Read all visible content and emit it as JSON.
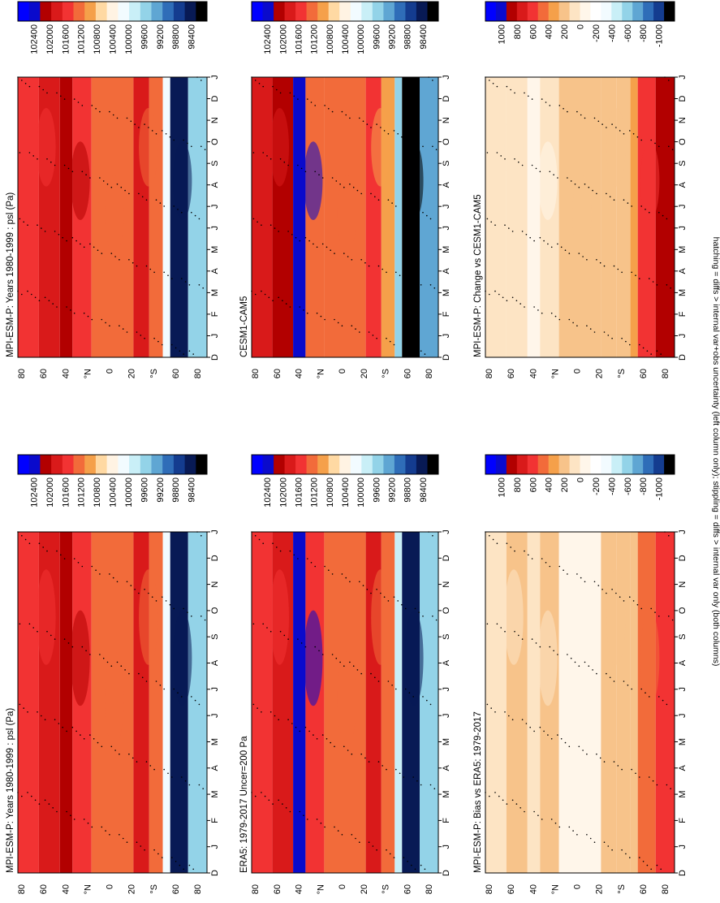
{
  "footnote": "hatching = diffs > internal var+obs uncertainty (left column only); stippling = diffs > internal var only (both columns)",
  "chart_data": [
    {
      "type": "heatmap",
      "panel": "left-top",
      "title": "MPI-ESM-P: Years 1980-1999 : psl (Pa)",
      "x_ticks": [
        "D",
        "J",
        "F",
        "M",
        "A",
        "M",
        "J",
        "J",
        "A",
        "S",
        "O",
        "N",
        "D",
        "J"
      ],
      "y_ticks": [
        "80",
        "60",
        "40",
        "°N",
        "0",
        "20",
        "°S",
        "60",
        "80"
      ],
      "colorbar_ticks": [
        "102400",
        "102000",
        "101600",
        "101200",
        "100800",
        "100400",
        "100000",
        "99600",
        "99200",
        "98800",
        "98400"
      ],
      "palette": "absolute",
      "zones": [
        {
          "lat_from": 90,
          "lat_to": 70,
          "value": 101400
        },
        {
          "lat_from": 70,
          "lat_to": 50,
          "value": 101700
        },
        {
          "lat_from": 50,
          "lat_to": 38,
          "value": 102000
        },
        {
          "lat_from": 38,
          "lat_to": 20,
          "value": 101400
        },
        {
          "lat_from": 20,
          "lat_to": -20,
          "value": 101150
        },
        {
          "lat_from": -20,
          "lat_to": -35,
          "value": 101700
        },
        {
          "lat_from": -35,
          "lat_to": -48,
          "value": 101200
        },
        {
          "lat_from": -48,
          "lat_to": -55,
          "value": 100100
        },
        {
          "lat_from": -55,
          "lat_to": -72,
          "value": 98700
        },
        {
          "lat_from": -72,
          "lat_to": -90,
          "value": 99700
        }
      ]
    },
    {
      "type": "heatmap",
      "panel": "right-top",
      "title": "MPI-ESM-P: Years 1980-1999 : psl (Pa)",
      "x_ticks": [
        "D",
        "J",
        "F",
        "M",
        "A",
        "M",
        "J",
        "J",
        "A",
        "S",
        "O",
        "N",
        "D",
        "J"
      ],
      "y_ticks": [
        "80",
        "60",
        "40",
        "°N",
        "0",
        "20",
        "°S",
        "60",
        "80"
      ],
      "colorbar_ticks": [
        "102400",
        "102000",
        "101600",
        "101200",
        "100800",
        "100400",
        "100000",
        "99600",
        "99200",
        "98800",
        "98400"
      ],
      "palette": "absolute",
      "zones": [
        {
          "lat_from": 90,
          "lat_to": 70,
          "value": 101400
        },
        {
          "lat_from": 70,
          "lat_to": 50,
          "value": 101700
        },
        {
          "lat_from": 50,
          "lat_to": 38,
          "value": 102000
        },
        {
          "lat_from": 38,
          "lat_to": 20,
          "value": 101400
        },
        {
          "lat_from": 20,
          "lat_to": -20,
          "value": 101150
        },
        {
          "lat_from": -20,
          "lat_to": -35,
          "value": 101700
        },
        {
          "lat_from": -35,
          "lat_to": -48,
          "value": 101200
        },
        {
          "lat_from": -48,
          "lat_to": -55,
          "value": 100100
        },
        {
          "lat_from": -55,
          "lat_to": -72,
          "value": 98700
        },
        {
          "lat_from": -72,
          "lat_to": -90,
          "value": 99700
        }
      ]
    },
    {
      "type": "heatmap",
      "panel": "left-middle",
      "title": "ERA5: 1979-2017 Uncer=200 Pa",
      "x_ticks": [
        "D",
        "J",
        "F",
        "M",
        "A",
        "M",
        "J",
        "J",
        "A",
        "S",
        "O",
        "N",
        "D",
        "J"
      ],
      "y_ticks": [
        "80",
        "60",
        "40",
        "°N",
        "0",
        "20",
        "°S",
        "60",
        "80"
      ],
      "colorbar_ticks": [
        "102400",
        "102000",
        "101600",
        "101200",
        "100800",
        "100400",
        "100000",
        "99600",
        "99200",
        "98800",
        "98400"
      ],
      "palette": "absolute",
      "zones": [
        {
          "lat_from": 90,
          "lat_to": 70,
          "value": 101500
        },
        {
          "lat_from": 70,
          "lat_to": 50,
          "value": 101800
        },
        {
          "lat_from": 50,
          "lat_to": 38,
          "value": 102100
        },
        {
          "lat_from": 38,
          "lat_to": 20,
          "value": 101400
        },
        {
          "lat_from": 20,
          "lat_to": -20,
          "value": 101150
        },
        {
          "lat_from": -20,
          "lat_to": -35,
          "value": 101600
        },
        {
          "lat_from": -35,
          "lat_to": -48,
          "value": 101100
        },
        {
          "lat_from": -48,
          "lat_to": -55,
          "value": 99800
        },
        {
          "lat_from": -55,
          "lat_to": -72,
          "value": 98500
        },
        {
          "lat_from": -72,
          "lat_to": -90,
          "value": 99500
        }
      ]
    },
    {
      "type": "heatmap",
      "panel": "right-middle",
      "title": "CESM1-CAM5",
      "x_ticks": [
        "D",
        "J",
        "F",
        "M",
        "A",
        "M",
        "J",
        "J",
        "A",
        "S",
        "O",
        "N",
        "D",
        "J"
      ],
      "y_ticks": [
        "80",
        "60",
        "40",
        "°N",
        "0",
        "20",
        "°S",
        "60",
        "80"
      ],
      "colorbar_ticks": [
        "102400",
        "102000",
        "101600",
        "101200",
        "100800",
        "100400",
        "100000",
        "99600",
        "99200",
        "98800",
        "98400"
      ],
      "palette": "absolute",
      "zones": [
        {
          "lat_from": 90,
          "lat_to": 70,
          "value": 101600
        },
        {
          "lat_from": 70,
          "lat_to": 50,
          "value": 101900
        },
        {
          "lat_from": 50,
          "lat_to": 38,
          "value": 102100
        },
        {
          "lat_from": 38,
          "lat_to": 20,
          "value": 101300
        },
        {
          "lat_from": 20,
          "lat_to": -20,
          "value": 101100
        },
        {
          "lat_from": -20,
          "lat_to": -35,
          "value": 101500
        },
        {
          "lat_from": -35,
          "lat_to": -48,
          "value": 101000
        },
        {
          "lat_from": -48,
          "lat_to": -55,
          "value": 99600
        },
        {
          "lat_from": -55,
          "lat_to": -72,
          "value": 98400
        },
        {
          "lat_from": -72,
          "lat_to": -90,
          "value": 99300
        }
      ]
    },
    {
      "type": "heatmap",
      "panel": "left-bottom",
      "title": "MPI-ESM-P: Bias vs ERA5: 1979-2017",
      "x_ticks": [
        "D",
        "J",
        "F",
        "M",
        "A",
        "M",
        "J",
        "J",
        "A",
        "S",
        "O",
        "N",
        "D",
        "J"
      ],
      "y_ticks": [
        "80",
        "60",
        "40",
        "°N",
        "0",
        "20",
        "°S",
        "60",
        "80"
      ],
      "colorbar_ticks": [
        "1000",
        "800",
        "600",
        "400",
        "200",
        "0",
        "-200",
        "-400",
        "-600",
        "-800",
        "-1000"
      ],
      "palette": "difference",
      "zones": [
        {
          "lat_from": 90,
          "lat_to": 70,
          "value": 100
        },
        {
          "lat_from": 70,
          "lat_to": 50,
          "value": 200
        },
        {
          "lat_from": 50,
          "lat_to": 38,
          "value": 50
        },
        {
          "lat_from": 38,
          "lat_to": 20,
          "value": 150
        },
        {
          "lat_from": 20,
          "lat_to": -20,
          "value": 0
        },
        {
          "lat_from": -20,
          "lat_to": -35,
          "value": 150
        },
        {
          "lat_from": -35,
          "lat_to": -48,
          "value": 200
        },
        {
          "lat_from": -48,
          "lat_to": -55,
          "value": 150
        },
        {
          "lat_from": -55,
          "lat_to": -72,
          "value": 400
        },
        {
          "lat_from": -72,
          "lat_to": -90,
          "value": 500
        }
      ]
    },
    {
      "type": "heatmap",
      "panel": "right-bottom",
      "title": "MPI-ESM-P: Change vs CESM1-CAM5",
      "x_ticks": [
        "D",
        "J",
        "F",
        "M",
        "A",
        "M",
        "J",
        "J",
        "A",
        "S",
        "O",
        "N",
        "D",
        "J"
      ],
      "y_ticks": [
        "80",
        "60",
        "40",
        "°N",
        "0",
        "20",
        "°S",
        "60",
        "80"
      ],
      "colorbar_ticks": [
        "1000",
        "800",
        "600",
        "400",
        "200",
        "0",
        "-200",
        "-400",
        "-600",
        "-800",
        "-1000"
      ],
      "palette": "difference",
      "zones": [
        {
          "lat_from": 90,
          "lat_to": 70,
          "value": 50
        },
        {
          "lat_from": 70,
          "lat_to": 50,
          "value": 100
        },
        {
          "lat_from": 50,
          "lat_to": 38,
          "value": -100
        },
        {
          "lat_from": 38,
          "lat_to": 20,
          "value": 100
        },
        {
          "lat_from": 20,
          "lat_to": -20,
          "value": 150
        },
        {
          "lat_from": -20,
          "lat_to": -35,
          "value": 200
        },
        {
          "lat_from": -35,
          "lat_to": -48,
          "value": 150
        },
        {
          "lat_from": -48,
          "lat_to": -55,
          "value": 300
        },
        {
          "lat_from": -55,
          "lat_to": -72,
          "value": 600
        },
        {
          "lat_from": -72,
          "lat_to": -90,
          "value": 800
        }
      ]
    }
  ],
  "palettes": {
    "absolute": [
      "#0000ff",
      "#0a0acc",
      "#b20000",
      "#d91a1a",
      "#f23333",
      "#f26b3a",
      "#f5a04a",
      "#ffd9a3",
      "#fff3e3",
      "#f2fbff",
      "#c9eff7",
      "#93d3e8",
      "#5fa6d3",
      "#2f6db8",
      "#143c8f",
      "#081a55",
      "#000000"
    ],
    "difference": [
      "#0000ff",
      "#0a0acc",
      "#b20000",
      "#d91a1a",
      "#f23333",
      "#f26b3a",
      "#f5a04a",
      "#f7c38a",
      "#fde4c4",
      "#fff6ea",
      "#ffffff",
      "#f2fbff",
      "#c9eff7",
      "#93d3e8",
      "#5fa6d3",
      "#2f6db8",
      "#143c8f",
      "#000000"
    ]
  }
}
